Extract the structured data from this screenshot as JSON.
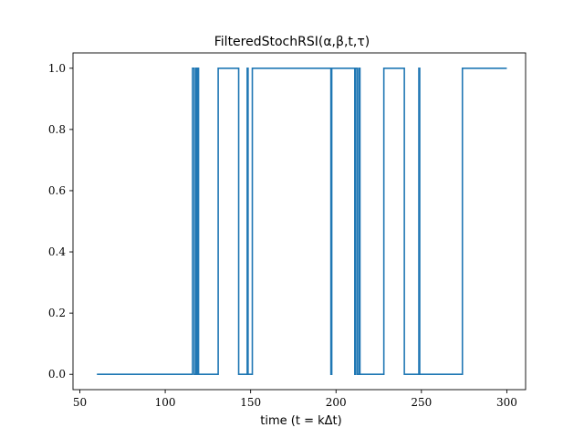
{
  "chart_data": {
    "type": "line",
    "title": "FilteredStochRSI(α,β,t,τ)",
    "xlabel": "time (t = kΔt)",
    "ylabel": "",
    "xlim": [
      46,
      311
    ],
    "ylim": [
      -0.05,
      1.05
    ],
    "xticks": [
      50,
      100,
      150,
      200,
      250,
      300
    ],
    "xtick_labels": [
      "50",
      "100",
      "150",
      "200",
      "250",
      "300"
    ],
    "yticks": [
      0.0,
      0.2,
      0.4,
      0.6,
      0.8,
      1.0
    ],
    "ytick_labels": [
      "0.0",
      "0.2",
      "0.4",
      "0.6",
      "0.8",
      "1.0"
    ],
    "grid": false,
    "line_color": "#1f77b4",
    "series": [
      {
        "x": [
          60,
          116,
          116,
          117,
          117,
          118,
          118,
          118.5,
          118.5,
          119,
          119,
          119.5,
          119.5,
          131,
          131,
          143,
          143,
          148,
          148,
          148.5,
          148.5,
          151,
          151,
          197,
          197,
          197.5,
          197.5,
          211,
          211,
          211.5,
          211.5,
          212.5,
          212.5,
          213.5,
          213.5,
          214,
          214,
          228,
          228,
          240,
          240,
          248.5,
          248.5,
          249,
          249,
          274,
          274,
          300
        ],
        "y": [
          0,
          0,
          1,
          1,
          0,
          0,
          1,
          1,
          0,
          0,
          1,
          1,
          0,
          0,
          1,
          1,
          0,
          0,
          1,
          1,
          0,
          0,
          1,
          1,
          0,
          0,
          1,
          1,
          0,
          0,
          1,
          1,
          0,
          0,
          1,
          1,
          0,
          0,
          1,
          1,
          0,
          0,
          1,
          1,
          0,
          0,
          1,
          1
        ]
      }
    ]
  }
}
